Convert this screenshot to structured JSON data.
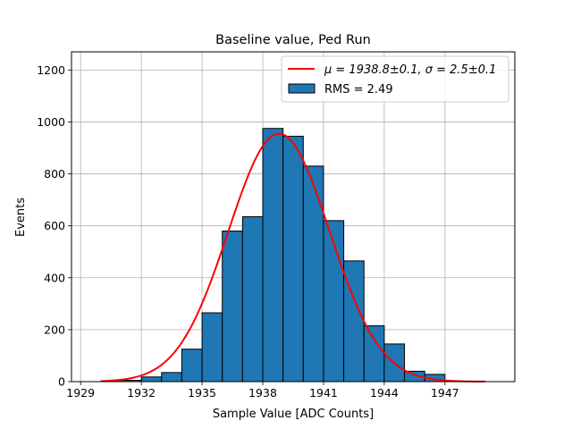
{
  "chart_data": {
    "type": "bar",
    "title": "Baseline value, Ped Run",
    "xlabel": "Sample Value [ADC Counts]",
    "ylabel": "Events",
    "xlim": [
      1928.55,
      1950.45
    ],
    "ylim": [
      0,
      1270
    ],
    "grid": true,
    "legend_position": "top-right",
    "x_ticks": [
      1929,
      1932,
      1935,
      1938,
      1941,
      1944,
      1947
    ],
    "y_ticks": [
      0,
      200,
      400,
      600,
      800,
      1000,
      1200
    ],
    "histogram": {
      "name": "RMS = 2.49",
      "bin_width": 1,
      "bin_starts": [
        1930,
        1931,
        1932,
        1933,
        1934,
        1935,
        1936,
        1937,
        1938,
        1939,
        1940,
        1941,
        1942,
        1943,
        1944,
        1945,
        1946
      ],
      "counts": [
        1,
        5,
        18,
        35,
        125,
        265,
        580,
        635,
        975,
        945,
        830,
        620,
        465,
        215,
        145,
        40,
        28
      ],
      "color": "#1f77b4",
      "edge_color": "#000000"
    },
    "fit": {
      "name_math": "μ = 1938.8±0.1, σ = 2.5±0.1",
      "mu": 1938.8,
      "sigma": 2.5,
      "amplitude": 955,
      "x_range": [
        1930,
        1949
      ],
      "color": "#ff0000"
    }
  }
}
